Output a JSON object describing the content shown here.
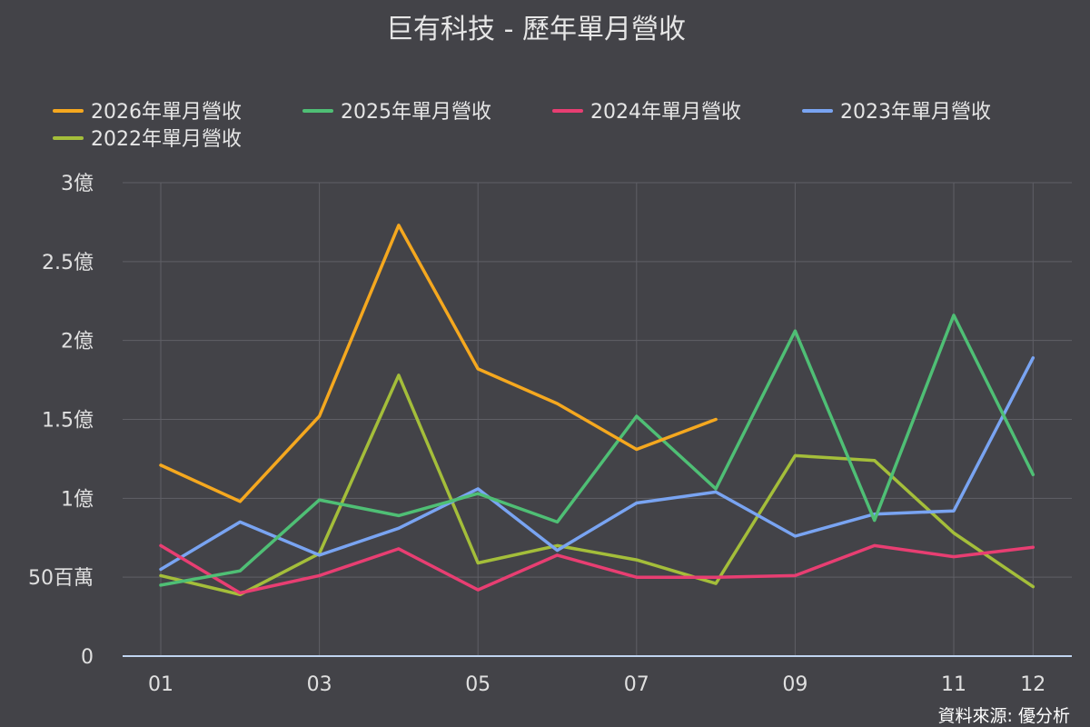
{
  "chart_data": {
    "type": "line",
    "title": "巨有科技 - 歷年單月營收",
    "source": "資料來源: 優分析",
    "x_categories": [
      "01",
      "02",
      "03",
      "04",
      "05",
      "06",
      "07",
      "08",
      "09",
      "10",
      "11",
      "12"
    ],
    "x_tick_labels": [
      "01",
      "03",
      "05",
      "07",
      "09",
      "11",
      "12"
    ],
    "y_ticks": [
      {
        "value": 0,
        "label": "0"
      },
      {
        "value": 50000000,
        "label": "50百萬"
      },
      {
        "value": 100000000,
        "label": "1億"
      },
      {
        "value": 150000000,
        "label": "1.5億"
      },
      {
        "value": 200000000,
        "label": "2億"
      },
      {
        "value": 250000000,
        "label": "2.5億"
      },
      {
        "value": 300000000,
        "label": "3億"
      }
    ],
    "ylim": [
      0,
      300000000
    ],
    "grid": true,
    "legend_position": "top",
    "series": [
      {
        "name": "2026年單月營收",
        "color": "#f5a81f",
        "values": [
          121000000,
          98000000,
          152000000,
          273000000,
          182000000,
          160000000,
          131000000,
          150000000,
          null,
          null,
          null,
          null
        ]
      },
      {
        "name": "2025年單月營收",
        "color": "#4fbf75",
        "values": [
          45000000,
          54000000,
          99000000,
          89000000,
          103000000,
          85000000,
          152000000,
          106000000,
          206000000,
          86000000,
          216000000,
          115000000
        ]
      },
      {
        "name": "2024年單月營收",
        "color": "#e83e72",
        "values": [
          70000000,
          40000000,
          51000000,
          68000000,
          42000000,
          64000000,
          50000000,
          50000000,
          51000000,
          70000000,
          63000000,
          69000000
        ]
      },
      {
        "name": "2023年單月營收",
        "color": "#79a4f2",
        "values": [
          55000000,
          85000000,
          64000000,
          81000000,
          106000000,
          67000000,
          97000000,
          104000000,
          76000000,
          90000000,
          92000000,
          189000000
        ]
      },
      {
        "name": "2022年單月營收",
        "color": "#a4be3a",
        "values": [
          51000000,
          39000000,
          65000000,
          178000000,
          59000000,
          70000000,
          61000000,
          46000000,
          127000000,
          124000000,
          78000000,
          44000000
        ]
      }
    ]
  }
}
